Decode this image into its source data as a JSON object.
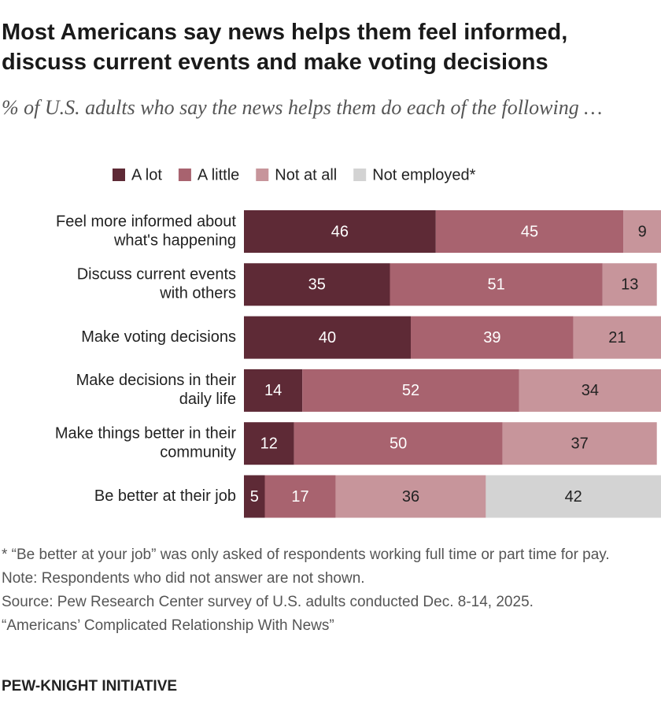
{
  "chart_data": {
    "type": "stacked-bar-horizontal",
    "title": "Most Americans say news helps them feel informed, discuss current events and make voting decisions",
    "subtitle": "% of U.S. adults who say the news helps them do each of the following …",
    "categories": [
      [
        "Feel more informed about",
        "what's happening"
      ],
      [
        "Discuss current events",
        "with others"
      ],
      [
        "Make voting decisions"
      ],
      [
        "Make decisions in their",
        "daily life"
      ],
      [
        "Make things better in their",
        "community"
      ],
      [
        "Be better at their job"
      ]
    ],
    "series": [
      {
        "name": "A lot",
        "color": "#5e2a36",
        "values": [
          46,
          35,
          40,
          14,
          12,
          5
        ]
      },
      {
        "name": "A little",
        "color": "#a8636f",
        "values": [
          45,
          51,
          39,
          52,
          50,
          17
        ]
      },
      {
        "name": "Not at all",
        "color": "#c7959b",
        "values": [
          9,
          13,
          21,
          34,
          37,
          36
        ]
      },
      {
        "name": "Not employed*",
        "color": "#d3d3d3",
        "values": [
          null,
          null,
          null,
          null,
          null,
          42
        ]
      }
    ],
    "xlim": [
      0,
      100
    ],
    "notes": [
      "* “Be better at your job” was only asked of respondents working full time or part time for pay.",
      "Note: Respondents who did not answer are not shown.",
      "Source: Pew Research Center survey of U.S. adults conducted Dec. 8-14, 2025.",
      "“Americans’ Complicated Relationship With News”"
    ],
    "brand": "PEW-KNIGHT INITIATIVE"
  }
}
